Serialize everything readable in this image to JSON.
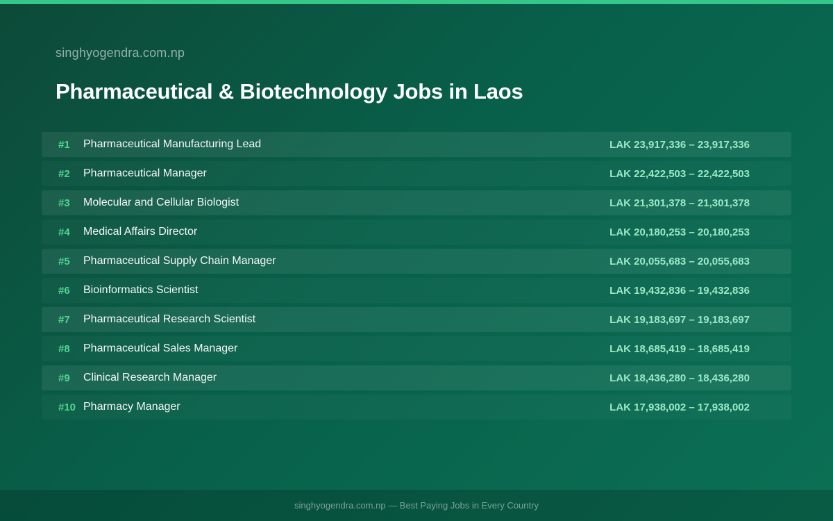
{
  "header": {
    "site": "singhyogendra.com.np",
    "title": "Pharmaceutical & Biotechnology Jobs in Laos"
  },
  "jobs": [
    {
      "rank": "#1",
      "title": "Pharmaceutical Manufacturing Lead",
      "salary": "LAK 23,917,336 – 23,917,336"
    },
    {
      "rank": "#2",
      "title": "Pharmaceutical Manager",
      "salary": "LAK 22,422,503 – 22,422,503"
    },
    {
      "rank": "#3",
      "title": "Molecular and Cellular Biologist",
      "salary": "LAK 21,301,378 – 21,301,378"
    },
    {
      "rank": "#4",
      "title": "Medical Affairs Director",
      "salary": "LAK 20,180,253 – 20,180,253"
    },
    {
      "rank": "#5",
      "title": "Pharmaceutical Supply Chain Manager",
      "salary": "LAK 20,055,683 – 20,055,683"
    },
    {
      "rank": "#6",
      "title": "Bioinformatics Scientist",
      "salary": "LAK 19,432,836 – 19,432,836"
    },
    {
      "rank": "#7",
      "title": "Pharmaceutical Research Scientist",
      "salary": "LAK 19,183,697 – 19,183,697"
    },
    {
      "rank": "#8",
      "title": "Pharmaceutical Sales Manager",
      "salary": "LAK 18,685,419 – 18,685,419"
    },
    {
      "rank": "#9",
      "title": "Clinical Research Manager",
      "salary": "LAK 18,436,280 – 18,436,280"
    },
    {
      "rank": "#10",
      "title": "Pharmacy Manager",
      "salary": "LAK 17,938,002 – 17,938,002"
    }
  ],
  "footer": {
    "text": "singhyogendra.com.np — Best Paying Jobs in Every Country"
  },
  "colors": {
    "accent": "#34c787",
    "rank": "#4fd68f",
    "salary": "#9be8c4",
    "background": "#08604a"
  }
}
